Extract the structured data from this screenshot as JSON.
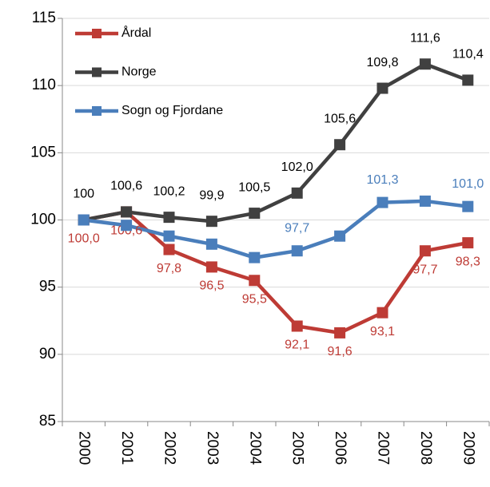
{
  "chart_data": {
    "type": "line",
    "categories": [
      "2000",
      "2001",
      "2002",
      "2003",
      "2004",
      "2005",
      "2006",
      "2007",
      "2008",
      "2009"
    ],
    "series": [
      {
        "name": "Årdal",
        "color": "#be3b35",
        "values": [
          100.0,
          100.6,
          97.8,
          96.5,
          95.5,
          92.1,
          91.6,
          93.1,
          97.7,
          98.3
        ],
        "value_labels": [
          "100,0",
          "100,6",
          "97,8",
          "96,5",
          "95,5",
          "92,1",
          "91,6",
          "93,1",
          "97,7",
          "98,3"
        ]
      },
      {
        "name": "Norge",
        "color": "#404040",
        "values": [
          100,
          100.6,
          100.2,
          99.9,
          100.5,
          102.0,
          105.6,
          109.8,
          111.6,
          110.4
        ],
        "value_labels": [
          "100",
          "100,6",
          "100,2",
          "99,9",
          "100,5",
          "102,0",
          "105,6",
          "109,8",
          "111,6",
          "110,4"
        ]
      },
      {
        "name": "Sogn og Fjordane",
        "color": "#4a7ebb",
        "values": [
          100,
          99.6,
          98.8,
          98.2,
          97.2,
          97.7,
          98.8,
          101.3,
          101.4,
          101.0
        ],
        "value_labels": [
          null,
          null,
          null,
          null,
          null,
          "97,7",
          null,
          "101,3",
          null,
          "101,0"
        ]
      }
    ],
    "ylim": [
      85,
      115
    ],
    "yticks": [
      85,
      90,
      95,
      100,
      105,
      110,
      115
    ],
    "grid": true,
    "legend": "top-left"
  }
}
